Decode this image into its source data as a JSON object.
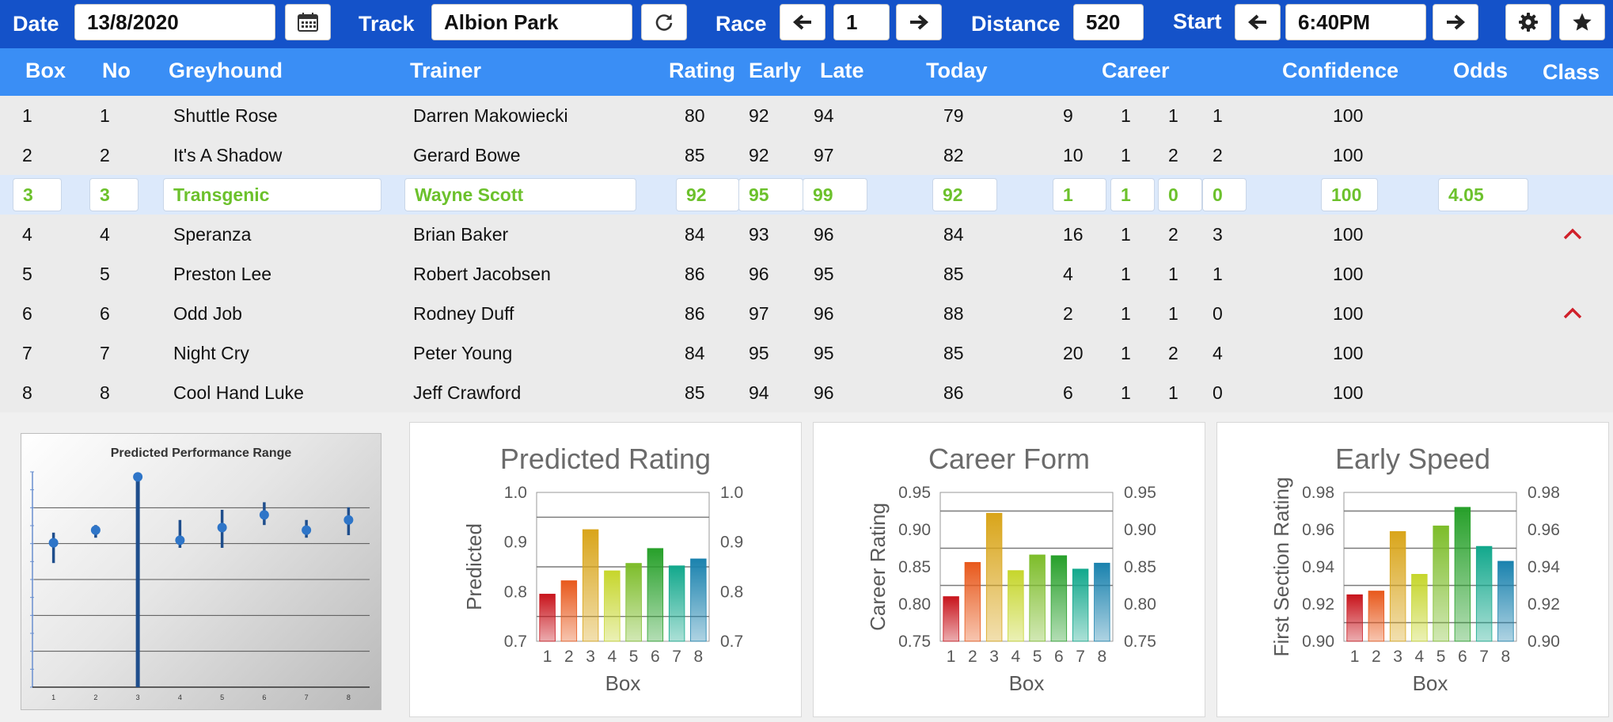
{
  "toolbar": {
    "date_label": "Date",
    "date_value": "13/8/2020",
    "track_label": "Track",
    "track_value": "Albion Park",
    "race_label": "Race",
    "race_value": "1",
    "distance_label": "Distance",
    "distance_value": "520",
    "start_label": "Start",
    "start_value": "6:40PM",
    "icons": [
      "calendar-icon",
      "refresh-icon",
      "arrow-left-icon",
      "arrow-right-icon",
      "gear-icon",
      "star-icon"
    ]
  },
  "table": {
    "headers": [
      "Box",
      "No",
      "Greyhound",
      "Trainer",
      "Rating",
      "Early",
      "Late",
      "Today",
      "Career",
      "Confidence",
      "Odds",
      "Class"
    ],
    "rows": [
      {
        "box": "1",
        "no": "1",
        "greyhound": "Shuttle Rose",
        "trainer": "Darren Makowiecki",
        "rating": "80",
        "early": "92",
        "late": "94",
        "today": "79",
        "career": [
          "9",
          "1",
          "1",
          "1"
        ],
        "confidence": "100",
        "odds": "",
        "class_flag": false
      },
      {
        "box": "2",
        "no": "2",
        "greyhound": "It's A Shadow",
        "trainer": "Gerard Bowe",
        "rating": "85",
        "early": "92",
        "late": "97",
        "today": "82",
        "career": [
          "10",
          "1",
          "2",
          "2"
        ],
        "confidence": "100",
        "odds": "",
        "class_flag": false
      },
      {
        "box": "3",
        "no": "3",
        "greyhound": "Transgenic",
        "trainer": "Wayne Scott",
        "rating": "92",
        "early": "95",
        "late": "99",
        "today": "92",
        "career": [
          "1",
          "1",
          "0",
          "0"
        ],
        "confidence": "100",
        "odds": "4.05",
        "class_flag": false,
        "selected": true
      },
      {
        "box": "4",
        "no": "4",
        "greyhound": "Speranza",
        "trainer": "Brian Baker",
        "rating": "84",
        "early": "93",
        "late": "96",
        "today": "84",
        "career": [
          "16",
          "1",
          "2",
          "3"
        ],
        "confidence": "100",
        "odds": "",
        "class_flag": true
      },
      {
        "box": "5",
        "no": "5",
        "greyhound": "Preston Lee",
        "trainer": "Robert Jacobsen",
        "rating": "86",
        "early": "96",
        "late": "95",
        "today": "85",
        "career": [
          "4",
          "1",
          "1",
          "1"
        ],
        "confidence": "100",
        "odds": "",
        "class_flag": false
      },
      {
        "box": "6",
        "no": "6",
        "greyhound": "Odd Job",
        "trainer": "Rodney Duff",
        "rating": "86",
        "early": "97",
        "late": "96",
        "today": "88",
        "career": [
          "2",
          "1",
          "1",
          "0"
        ],
        "confidence": "100",
        "odds": "",
        "class_flag": true
      },
      {
        "box": "7",
        "no": "7",
        "greyhound": "Night Cry",
        "trainer": "Peter Young",
        "rating": "84",
        "early": "95",
        "late": "95",
        "today": "85",
        "career": [
          "20",
          "1",
          "2",
          "4"
        ],
        "confidence": "100",
        "odds": "",
        "class_flag": false
      },
      {
        "box": "8",
        "no": "8",
        "greyhound": "Cool Hand Luke",
        "trainer": "Jeff Crawford",
        "rating": "85",
        "early": "94",
        "late": "96",
        "today": "86",
        "career": [
          "6",
          "1",
          "1",
          "0"
        ],
        "confidence": "100",
        "odds": "",
        "class_flag": false
      }
    ]
  },
  "colors": {
    "toolbar_bg": "#1452c9",
    "header_bg": "#3a8ef5",
    "selected_text": "#6cc12c",
    "class_caret": "#d0202a",
    "bar_colors": [
      "#c8141c",
      "#e8591c",
      "#d9a51a",
      "#c6d62c",
      "#7dbd2a",
      "#27a02a",
      "#12a88c",
      "#1a82ae"
    ]
  },
  "chart_data": [
    {
      "type": "scatter",
      "title": "Predicted Performance Range",
      "categories": [
        "1",
        "2",
        "3",
        "4",
        "5",
        "6",
        "7",
        "8"
      ],
      "points": [
        0.57,
        0.62,
        0.83,
        0.58,
        0.63,
        0.68,
        0.62,
        0.66
      ],
      "ranges": [
        [
          0.49,
          0.61
        ],
        [
          0.59,
          0.64
        ],
        [
          0.0,
          0.83
        ],
        [
          0.55,
          0.66
        ],
        [
          0.55,
          0.7
        ],
        [
          0.64,
          0.73
        ],
        [
          0.59,
          0.66
        ],
        [
          0.6,
          0.71
        ]
      ],
      "grid": true,
      "legend": false
    },
    {
      "type": "bar",
      "title": "Predicted Rating",
      "categories": [
        "1",
        "2",
        "3",
        "4",
        "5",
        "6",
        "7",
        "8"
      ],
      "values": [
        0.795,
        0.822,
        0.925,
        0.842,
        0.857,
        0.887,
        0.852,
        0.866
      ],
      "xlabel": "Box",
      "ylabel": "Predicted",
      "ylim": [
        0.7,
        1.0
      ],
      "ticks": [
        "0.7",
        "0.8",
        "0.9",
        "1.0"
      ],
      "tick_values": [
        0.7,
        0.8,
        0.9,
        1.0
      ],
      "gridlines": [
        0.75,
        0.85,
        0.95
      ]
    },
    {
      "type": "bar",
      "title": "Career Form",
      "categories": [
        "1",
        "2",
        "3",
        "4",
        "5",
        "6",
        "7",
        "8"
      ],
      "values": [
        0.81,
        0.856,
        0.922,
        0.845,
        0.866,
        0.865,
        0.847,
        0.855
      ],
      "xlabel": "Box",
      "ylabel": "Career Rating",
      "ylim": [
        0.75,
        0.95
      ],
      "ticks": [
        "0.75",
        "0.80",
        "0.85",
        "0.90",
        "0.95"
      ],
      "tick_values": [
        0.75,
        0.8,
        0.85,
        0.9,
        0.95
      ],
      "gridlines": [
        0.825,
        0.875,
        0.925
      ]
    },
    {
      "type": "bar",
      "title": "Early Speed",
      "categories": [
        "1",
        "2",
        "3",
        "4",
        "5",
        "6",
        "7",
        "8"
      ],
      "values": [
        0.925,
        0.927,
        0.959,
        0.936,
        0.962,
        0.972,
        0.951,
        0.943
      ],
      "xlabel": "Box",
      "ylabel": "First Section Rating",
      "ylim": [
        0.9,
        0.98
      ],
      "ticks": [
        "0.90",
        "0.92",
        "0.94",
        "0.96",
        "0.98"
      ],
      "tick_values": [
        0.9,
        0.92,
        0.94,
        0.96,
        0.98
      ],
      "gridlines": [
        0.91,
        0.93,
        0.95,
        0.97
      ]
    }
  ]
}
